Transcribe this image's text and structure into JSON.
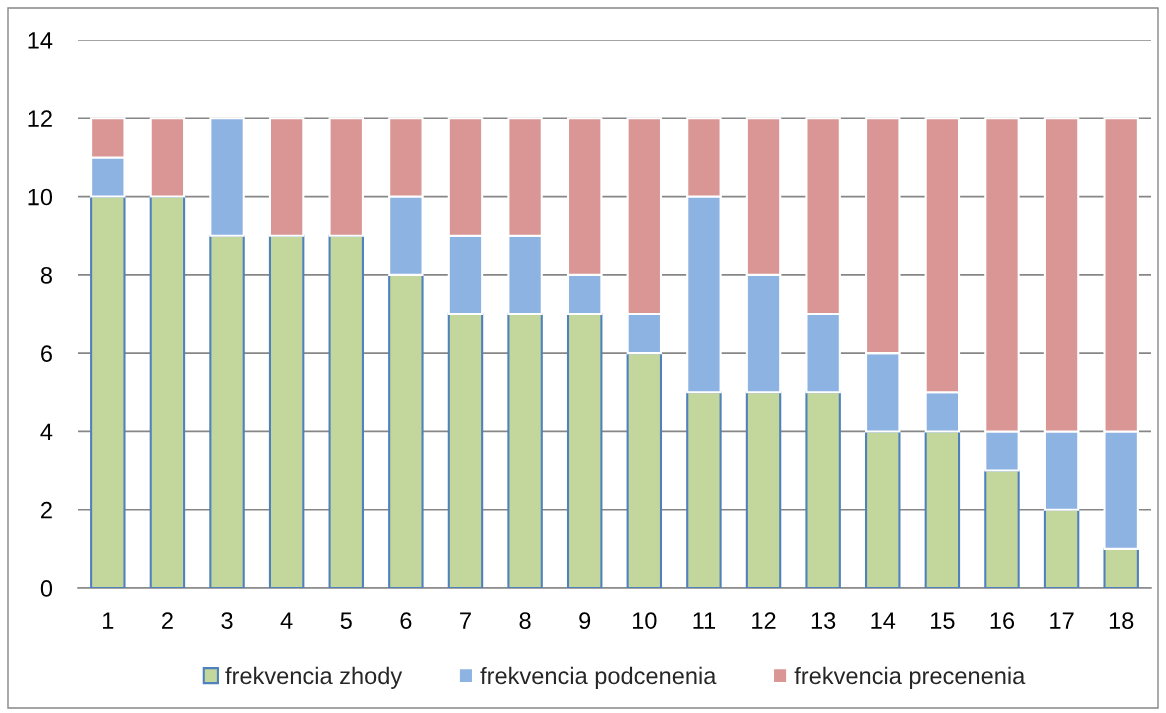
{
  "chart_data": {
    "type": "bar",
    "stacked": true,
    "categories": [
      "1",
      "2",
      "3",
      "4",
      "5",
      "6",
      "7",
      "8",
      "9",
      "10",
      "11",
      "12",
      "13",
      "14",
      "15",
      "16",
      "17",
      "18"
    ],
    "series": [
      {
        "name": "frekvencia zhody",
        "color": "#c3d69b",
        "values": [
          10,
          10,
          9,
          9,
          9,
          8,
          7,
          7,
          7,
          6,
          5,
          5,
          5,
          4,
          4,
          3,
          2,
          1
        ]
      },
      {
        "name": "frekvencia podcenenia",
        "color": "#8db3e2",
        "values": [
          1,
          0,
          3,
          0,
          0,
          2,
          2,
          2,
          1,
          1,
          5,
          3,
          2,
          2,
          1,
          1,
          2,
          3
        ]
      },
      {
        "name": "frekvencia precenenia",
        "color": "#d99694",
        "values": [
          1,
          2,
          0,
          3,
          3,
          2,
          3,
          3,
          4,
          5,
          2,
          4,
          5,
          6,
          7,
          8,
          8,
          8
        ]
      }
    ],
    "ylim": [
      0,
      14
    ],
    "yticks": [
      0,
      2,
      4,
      6,
      8,
      10,
      12,
      14
    ],
    "grid": "y",
    "legend": "bottom"
  }
}
